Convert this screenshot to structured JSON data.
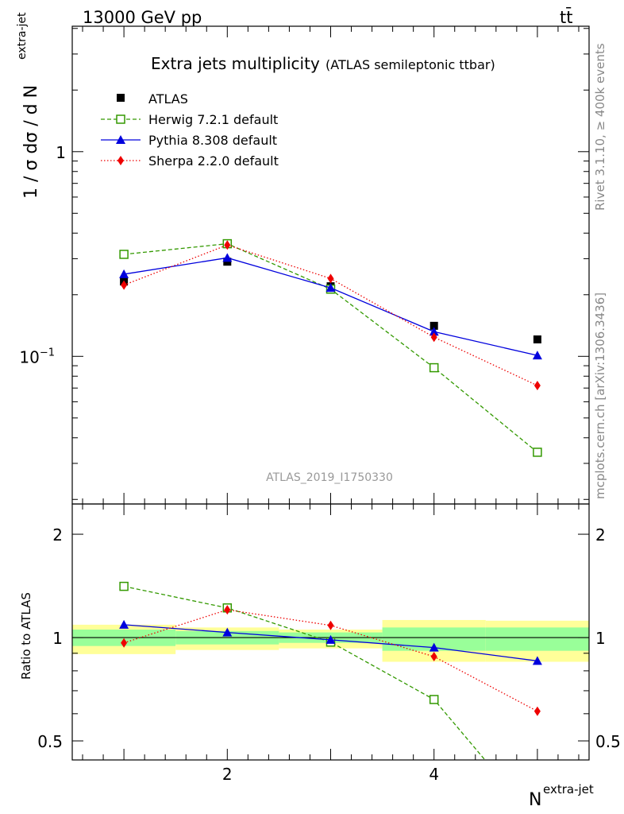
{
  "header": {
    "energy_label": "13000 GeV pp",
    "process_label": "tt̄",
    "side_rivet": "Rivet 3.1.10, ≥ 400k events",
    "side_source": "mcplots.cern.ch [arXiv:1306.3436]"
  },
  "chart_data": [
    {
      "type": "line",
      "panel": "main",
      "title": "Extra jets multiplicity",
      "subtitle": "(ATLAS semileptonic ttbar)",
      "ylabel_main": "1 / σ dσ / d N",
      "ylabel_sup": "extra-jet",
      "watermark": "ATLAS_2019_I1750330",
      "yscale": "log",
      "xlim": [
        0.5,
        5.5
      ],
      "ylim": [
        0.019,
        4.1
      ],
      "y_ticks": [
        {
          "value": 1,
          "label": "1"
        },
        {
          "value": 0.1,
          "label": "10",
          "sup": "−1"
        }
      ],
      "grid": false,
      "legend_position": "top-left",
      "x": [
        1,
        2,
        3,
        4,
        5
      ],
      "series": [
        {
          "name": "ATLAS",
          "color": "#000000",
          "marker": "square-filled",
          "line": "none",
          "values": [
            0.232,
            0.29,
            0.22,
            0.141,
            0.121
          ]
        },
        {
          "name": "Herwig 7.2.1 default",
          "color": "#339900",
          "marker": "square-open",
          "line": "dashed",
          "values": [
            0.315,
            0.355,
            0.213,
            0.088,
            0.034
          ]
        },
        {
          "name": "Pythia 8.308 default",
          "color": "#0000dd",
          "marker": "triangle",
          "line": "solid",
          "values": [
            0.252,
            0.303,
            0.216,
            0.132,
            0.101
          ]
        },
        {
          "name": "Sherpa 2.2.0 default",
          "color": "#ee0000",
          "marker": "diamond",
          "line": "dotted",
          "values": [
            0.223,
            0.35,
            0.24,
            0.124,
            0.072
          ]
        }
      ]
    },
    {
      "type": "line",
      "panel": "ratio",
      "ylabel": "Ratio to ATLAS",
      "xlabel_main": "N",
      "xlabel_sup": "extra-jet",
      "xlim": [
        0.5,
        5.5
      ],
      "ylim": [
        0.44,
        2.45
      ],
      "x_ticks": [
        2,
        4
      ],
      "y_ticks": [
        {
          "value": 2,
          "label": "2"
        },
        {
          "value": 1,
          "label": "1"
        },
        {
          "value": 0.5,
          "label": "0.5"
        }
      ],
      "reference_line": 1,
      "uncertainty_bands": [
        {
          "x_range": [
            0.5,
            1.5
          ],
          "inner": [
            0.945,
            1.055
          ],
          "outer": [
            0.895,
            1.09
          ]
        },
        {
          "x_range": [
            1.5,
            2.5
          ],
          "inner": [
            0.955,
            1.045
          ],
          "outer": [
            0.92,
            1.07
          ]
        },
        {
          "x_range": [
            2.5,
            3.5
          ],
          "inner": [
            0.965,
            1.035
          ],
          "outer": [
            0.93,
            1.055
          ]
        },
        {
          "x_range": [
            3.5,
            4.5
          ],
          "inner": [
            0.915,
            1.07
          ],
          "outer": [
            0.85,
            1.125
          ]
        },
        {
          "x_range": [
            4.5,
            5.5
          ],
          "inner": [
            0.915,
            1.07
          ],
          "outer": [
            0.85,
            1.12
          ]
        }
      ],
      "x": [
        1,
        2,
        3,
        4,
        5
      ],
      "series": [
        {
          "name": "Herwig 7.2.1 default",
          "color": "#339900",
          "marker": "square-open",
          "line": "dashed",
          "values": [
            1.41,
            1.22,
            0.97,
            0.66,
            0.29
          ]
        },
        {
          "name": "Pythia 8.308 default",
          "color": "#0000dd",
          "marker": "triangle",
          "line": "solid",
          "values": [
            1.09,
            1.035,
            0.985,
            0.935,
            0.855
          ]
        },
        {
          "name": "Sherpa 2.2.0 default",
          "color": "#ee0000",
          "marker": "diamond",
          "line": "dotted",
          "values": [
            0.965,
            1.205,
            1.085,
            0.88,
            0.61
          ]
        }
      ]
    }
  ]
}
